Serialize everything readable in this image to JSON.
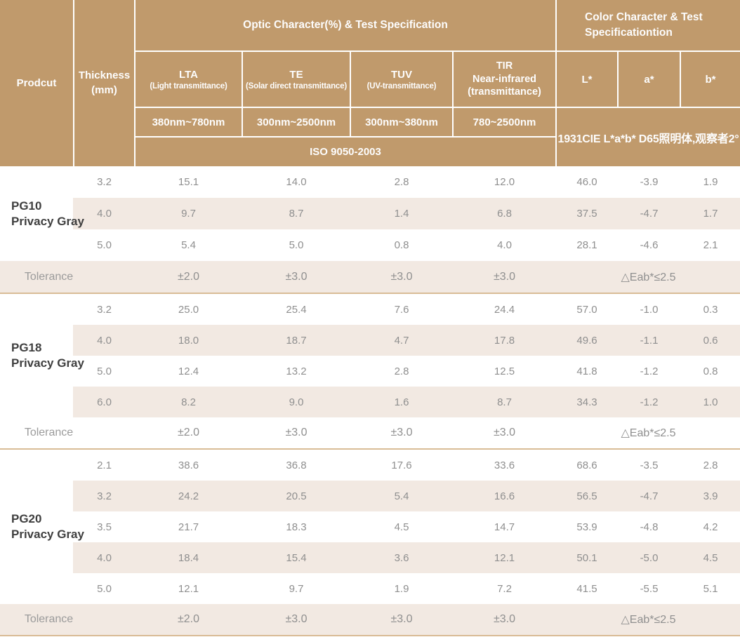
{
  "colors": {
    "header_bg": "#c09a6c",
    "stripe_bg": "#f2e9e2",
    "divider": "#d9bc96",
    "header_text": "#ffffff",
    "data_text": "#8f8f8f",
    "product_text": "#3f3f3f"
  },
  "header": {
    "product_col": "Prodcut",
    "thickness_line1": "Thickness",
    "thickness_line2": "(mm)",
    "optic_title": "Optic Character(%) & Test Specification",
    "color_title_line1": "Color Character & Test",
    "color_title_line2": "Specificationtion",
    "columns": [
      {
        "abbr": "LTA",
        "desc": "(Light transmittance)",
        "range": "380nm~780nm"
      },
      {
        "abbr": "TE",
        "desc": "(Solar direct transmittance)",
        "range": "300nm~2500nm"
      },
      {
        "abbr": "TUV",
        "desc": "(UV-transmittance)",
        "range": "300nm~380nm"
      },
      {
        "abbr": "TIR",
        "desc_line1": "Near-infrared",
        "desc_line2": "(transmittance)",
        "range": "780~2500nm"
      }
    ],
    "color_columns": [
      "L*",
      "a*",
      "b*"
    ],
    "iso_standard": "ISO 9050-2003",
    "cie_note": "1931CIE L*a*b*  D65照明体,观察者2°"
  },
  "sections": [
    {
      "product_line1": "PG10",
      "product_line2": "Privacy Gray",
      "rows": [
        {
          "thickness": "3.2",
          "lta": "15.1",
          "te": "14.0",
          "tuv": "2.8",
          "tir": "12.0",
          "l": "46.0",
          "a": "-3.9",
          "b": "1.9"
        },
        {
          "thickness": "4.0",
          "lta": "9.7",
          "te": "8.7",
          "tuv": "1.4",
          "tir": "6.8",
          "l": "37.5",
          "a": "-4.7",
          "b": "1.7"
        },
        {
          "thickness": "5.0",
          "lta": "5.4",
          "te": "5.0",
          "tuv": "0.8",
          "tir": "4.0",
          "l": "28.1",
          "a": "-4.6",
          "b": "2.1"
        }
      ],
      "tolerance": {
        "label": "Tolerance",
        "lta": "±2.0",
        "te": "±3.0",
        "tuv": "±3.0",
        "tir": "±3.0",
        "color": "△Eab*≤2.5"
      }
    },
    {
      "product_line1": "PG18",
      "product_line2": "Privacy Gray",
      "rows": [
        {
          "thickness": "3.2",
          "lta": "25.0",
          "te": "25.4",
          "tuv": "7.6",
          "tir": "24.4",
          "l": "57.0",
          "a": "-1.0",
          "b": "0.3"
        },
        {
          "thickness": "4.0",
          "lta": "18.0",
          "te": "18.7",
          "tuv": "4.7",
          "tir": "17.8",
          "l": "49.6",
          "a": "-1.1",
          "b": "0.6"
        },
        {
          "thickness": "5.0",
          "lta": "12.4",
          "te": "13.2",
          "tuv": "2.8",
          "tir": "12.5",
          "l": "41.8",
          "a": "-1.2",
          "b": "0.8"
        },
        {
          "thickness": "6.0",
          "lta": "8.2",
          "te": "9.0",
          "tuv": "1.6",
          "tir": "8.7",
          "l": "34.3",
          "a": "-1.2",
          "b": "1.0"
        }
      ],
      "tolerance": {
        "label": "Tolerance",
        "lta": "±2.0",
        "te": "±3.0",
        "tuv": "±3.0",
        "tir": "±3.0",
        "color": "△Eab*≤2.5"
      }
    },
    {
      "product_line1": "PG20",
      "product_line2": "Privacy Gray",
      "rows": [
        {
          "thickness": "2.1",
          "lta": "38.6",
          "te": "36.8",
          "tuv": "17.6",
          "tir": "33.6",
          "l": "68.6",
          "a": "-3.5",
          "b": "2.8"
        },
        {
          "thickness": "3.2",
          "lta": "24.2",
          "te": "20.5",
          "tuv": "5.4",
          "tir": "16.6",
          "l": "56.5",
          "a": "-4.7",
          "b": "3.9"
        },
        {
          "thickness": "3.5",
          "lta": "21.7",
          "te": "18.3",
          "tuv": "4.5",
          "tir": "14.7",
          "l": "53.9",
          "a": "-4.8",
          "b": "4.2"
        },
        {
          "thickness": "4.0",
          "lta": "18.4",
          "te": "15.4",
          "tuv": "3.6",
          "tir": "12.1",
          "l": "50.1",
          "a": "-5.0",
          "b": "4.5"
        },
        {
          "thickness": "5.0",
          "lta": "12.1",
          "te": "9.7",
          "tuv": "1.9",
          "tir": "7.2",
          "l": "41.5",
          "a": "-5.5",
          "b": "5.1"
        }
      ],
      "tolerance": {
        "label": "Tolerance",
        "lta": "±2.0",
        "te": "±3.0",
        "tuv": "±3.0",
        "tir": "±3.0",
        "color": "△Eab*≤2.5"
      }
    }
  ]
}
